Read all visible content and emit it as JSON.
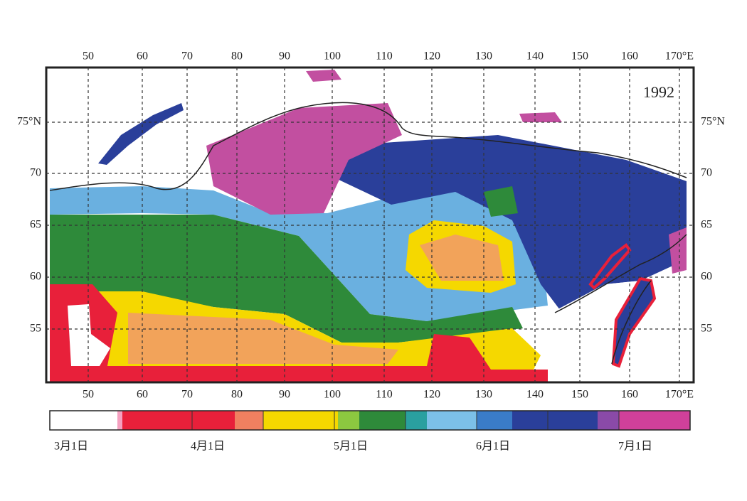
{
  "map": {
    "year": "1992",
    "lon_labels_top": [
      "50",
      "60",
      "70",
      "80",
      "90",
      "100",
      "110",
      "120",
      "130",
      "140",
      "150",
      "160",
      "170°E"
    ],
    "lon_labels_bottom": [
      "50",
      "60",
      "70",
      "80",
      "90",
      "100",
      "110",
      "120",
      "130",
      "140",
      "150",
      "160",
      "170°E"
    ],
    "lat_labels_left": [
      "75°N",
      "70",
      "65",
      "60",
      "55"
    ],
    "lat_labels_right": [
      "75°N",
      "70",
      "65",
      "60",
      "55"
    ]
  },
  "legend": {
    "labels": [
      "3月1日",
      "4月1日",
      "5月1日",
      "6月1日",
      "7月1日"
    ]
  }
}
